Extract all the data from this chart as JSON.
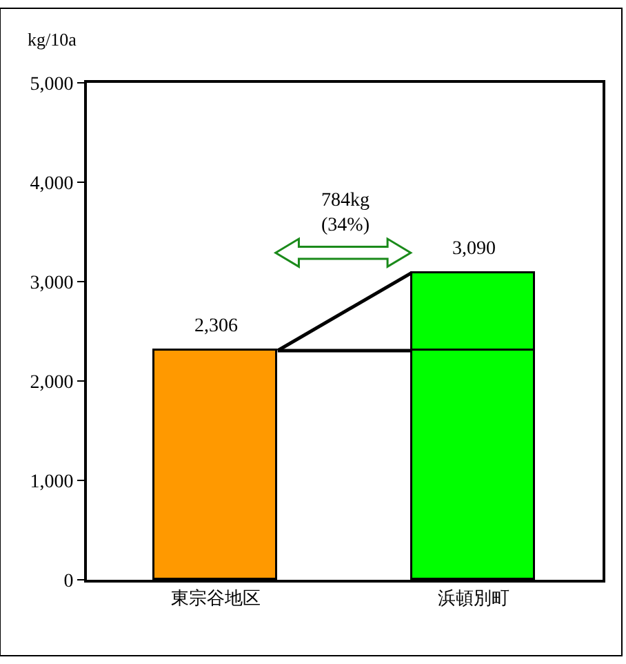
{
  "chart_data": {
    "type": "bar",
    "stacked": true,
    "ylabel": "kg/10a",
    "categories": [
      "東宗谷地区",
      "浜頓別町"
    ],
    "series": [
      {
        "colors": [
          "#ff9900",
          "#00ff00"
        ],
        "values": [
          2306,
          2306
        ]
      },
      {
        "color": "#00ff00",
        "values": [
          null,
          784
        ]
      }
    ],
    "totals": [
      "2,306",
      "3,090"
    ],
    "annotations": [
      "784kg\n(34%)"
    ],
    "ylim": [
      0,
      5000
    ],
    "yticks": [
      0,
      {
        "value": 1000,
        "label": "1,000"
      },
      {
        "value": 2000,
        "label": "2,000"
      },
      {
        "value": 3000,
        "label": "3,000"
      },
      {
        "value": 4000,
        "label": "4,000"
      },
      {
        "value": 5000,
        "label": "5,000"
      }
    ],
    "line_style": "solid"
  }
}
